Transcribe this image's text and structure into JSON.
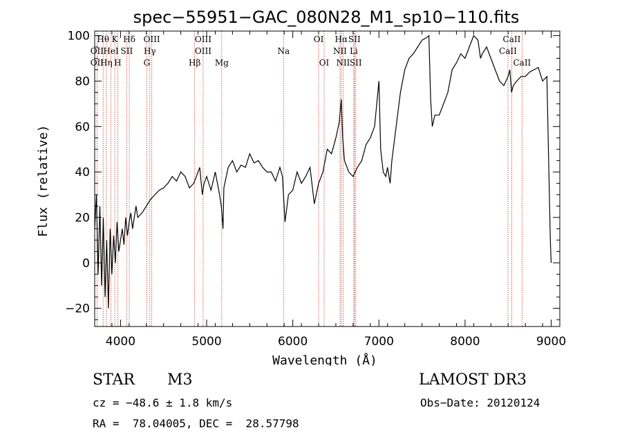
{
  "chart_data": {
    "type": "line",
    "title": "spec−55951−GAC_080N28_M1_sp10−110.fits",
    "xlabel": "Wavelength (Å)",
    "ylabel": "Flux (relative)",
    "xlim": [
      3700,
      9100
    ],
    "ylim": [
      -28,
      102
    ],
    "xticks": [
      4000,
      5000,
      6000,
      7000,
      8000,
      9000
    ],
    "yticks": [
      -20,
      0,
      20,
      40,
      60,
      80,
      100
    ],
    "xtick_labels": [
      "4000",
      "5000",
      "6000",
      "7000",
      "8000",
      "9000"
    ],
    "ytick_labels": [
      "−20",
      "0",
      "20",
      "40",
      "60",
      "80",
      "100"
    ],
    "series": [
      {
        "name": "flux",
        "x": [
          3700,
          3720,
          3740,
          3760,
          3780,
          3800,
          3820,
          3840,
          3860,
          3880,
          3900,
          3920,
          3940,
          3960,
          3980,
          4000,
          4020,
          4040,
          4060,
          4080,
          4100,
          4120,
          4140,
          4160,
          4180,
          4200,
          4250,
          4300,
          4350,
          4400,
          4450,
          4500,
          4550,
          4600,
          4650,
          4700,
          4750,
          4800,
          4850,
          4880,
          4920,
          4950,
          4970,
          5000,
          5050,
          5100,
          5150,
          5170,
          5190,
          5200,
          5250,
          5300,
          5350,
          5400,
          5450,
          5500,
          5550,
          5600,
          5650,
          5700,
          5750,
          5800,
          5850,
          5880,
          5910,
          5950,
          6000,
          6050,
          6100,
          6150,
          6200,
          6250,
          6300,
          6350,
          6400,
          6450,
          6500,
          6540,
          6563,
          6580,
          6600,
          6650,
          6700,
          6750,
          6800,
          6850,
          6900,
          6950,
          7000,
          7020,
          7050,
          7080,
          7100,
          7130,
          7150,
          7200,
          7250,
          7300,
          7350,
          7400,
          7450,
          7500,
          7550,
          7580,
          7600,
          7620,
          7650,
          7700,
          7750,
          7800,
          7850,
          7900,
          7950,
          8000,
          8050,
          8100,
          8150,
          8180,
          8200,
          8250,
          8300,
          8350,
          8400,
          8450,
          8500,
          8520,
          8540,
          8560,
          8600,
          8650,
          8700,
          8750,
          8800,
          8850,
          8900,
          8950,
          8990,
          9000
        ],
        "y": [
          15,
          30,
          -5,
          25,
          -10,
          20,
          -15,
          10,
          -20,
          15,
          -5,
          12,
          0,
          18,
          5,
          10,
          15,
          8,
          20,
          12,
          18,
          22,
          15,
          20,
          25,
          20,
          22,
          25,
          28,
          30,
          32,
          33,
          35,
          38,
          36,
          40,
          38,
          33,
          35,
          38,
          42,
          30,
          35,
          38,
          32,
          40,
          30,
          25,
          15,
          33,
          42,
          45,
          40,
          43,
          42,
          48,
          44,
          45,
          42,
          40,
          40,
          36,
          42,
          38,
          18,
          30,
          32,
          40,
          35,
          38,
          42,
          26,
          35,
          40,
          50,
          48,
          55,
          62,
          72,
          55,
          45,
          40,
          38,
          42,
          45,
          52,
          55,
          60,
          80,
          50,
          40,
          38,
          42,
          35,
          45,
          60,
          75,
          85,
          90,
          92,
          95,
          98,
          99,
          100,
          72,
          60,
          65,
          65,
          70,
          75,
          85,
          88,
          92,
          90,
          95,
          100,
          98,
          90,
          92,
          95,
          90,
          85,
          80,
          78,
          82,
          85,
          75,
          78,
          80,
          82,
          82,
          84,
          85,
          86,
          80,
          82,
          10,
          0
        ]
      }
    ],
    "spectral_lines": [
      {
        "label": "Hθ",
        "x": 3798,
        "row": 0
      },
      {
        "label": "OΙI",
        "x": 3727,
        "row": 1
      },
      {
        "label": "OΙI",
        "x": 3727,
        "row": 2
      },
      {
        "label": "Hη",
        "x": 3835,
        "row": 2
      },
      {
        "label": "K",
        "x": 3934,
        "row": 0
      },
      {
        "label": "H",
        "x": 3968,
        "row": 2
      },
      {
        "label": "HeI",
        "x": 3889,
        "row": 1
      },
      {
        "label": "Hδ",
        "x": 4102,
        "row": 0
      },
      {
        "label": "SII",
        "x": 4072,
        "row": 1
      },
      {
        "label": "OIII",
        "x": 4363,
        "row": 0
      },
      {
        "label": "Hγ",
        "x": 4340,
        "row": 1
      },
      {
        "label": "G",
        "x": 4305,
        "row": 2
      },
      {
        "label": "OIII",
        "x": 4959,
        "row": 0
      },
      {
        "label": "OIII",
        "x": 4959,
        "row": 1
      },
      {
        "label": "Hβ",
        "x": 4861,
        "row": 2
      },
      {
        "label": "Mg",
        "x": 5175,
        "row": 2
      },
      {
        "label": "Na",
        "x": 5893,
        "row": 1
      },
      {
        "label": "OI",
        "x": 6300,
        "row": 0
      },
      {
        "label": "OI",
        "x": 6364,
        "row": 2
      },
      {
        "label": "Hα",
        "x": 6563,
        "row": 0
      },
      {
        "label": "NII",
        "x": 6548,
        "row": 1
      },
      {
        "label": "NII",
        "x": 6584,
        "row": 2
      },
      {
        "label": "SII",
        "x": 6716,
        "row": 0
      },
      {
        "label": "Li",
        "x": 6708,
        "row": 1
      },
      {
        "label": "SII",
        "x": 6731,
        "row": 2
      },
      {
        "label": "CaII",
        "x": 8542,
        "row": 0
      },
      {
        "label": "CaII",
        "x": 8498,
        "row": 1
      },
      {
        "label": "CaII",
        "x": 8662,
        "row": 2
      }
    ]
  },
  "info": {
    "object_type": "STAR",
    "subclass": "M3",
    "survey": "LAMOST DR3",
    "cz": "cz = −48.6 ± 1.8 km/s",
    "obs_date": "Obs−Date: 20120124",
    "coords": "RA =  78.04005, DEC =  28.57798"
  },
  "colors": {
    "spectrum": "#000000",
    "line_marker": "#c0392b",
    "axis": "#000000"
  }
}
